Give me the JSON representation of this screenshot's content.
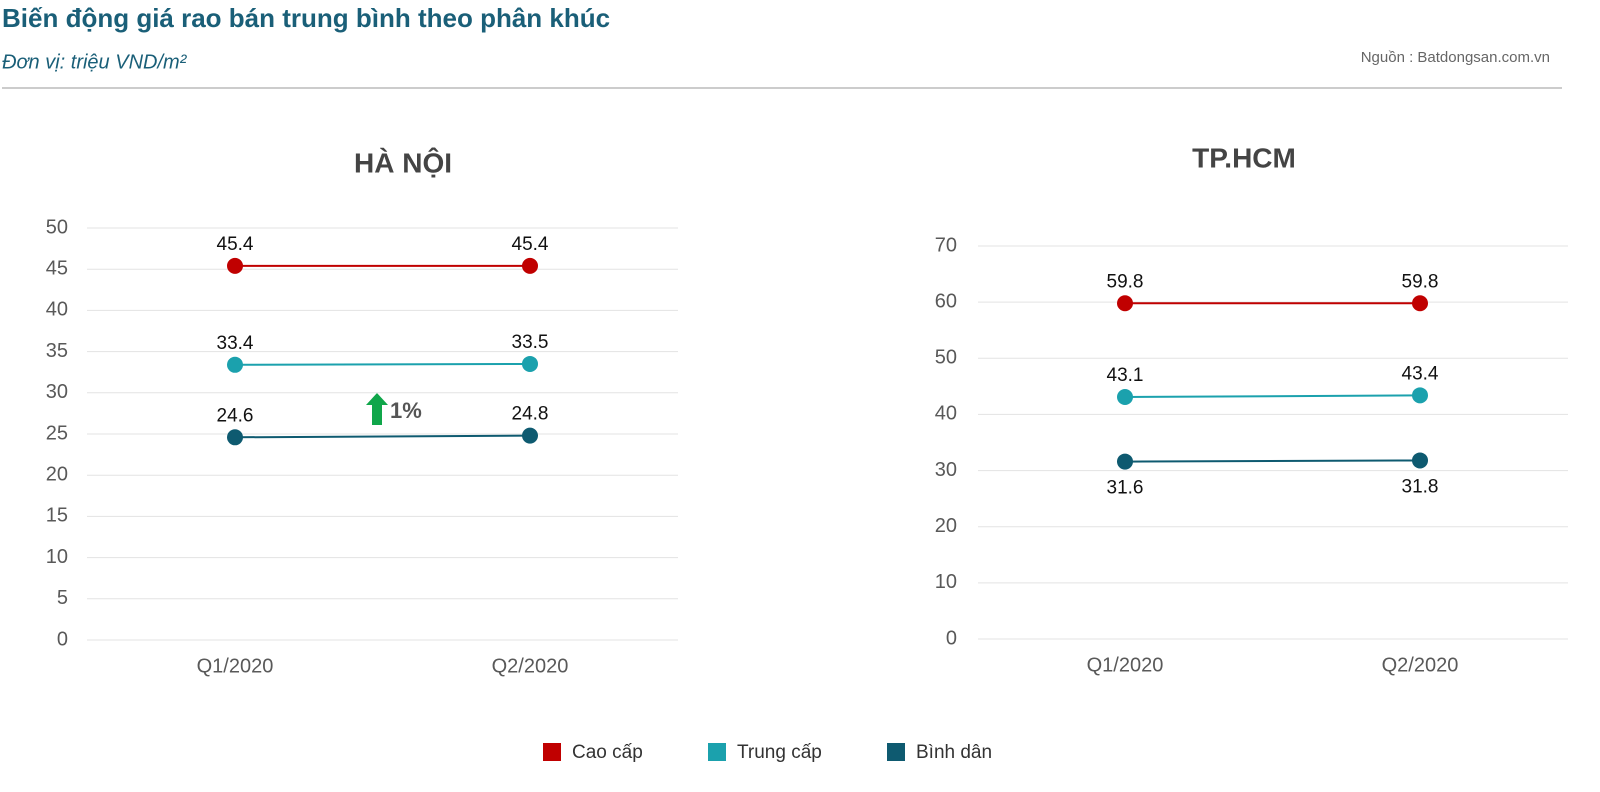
{
  "title": "Biến động giá rao bán trung bình theo phân khúc",
  "subtitle": "Đơn vị: triệu VND/m²",
  "source": "Nguồn : Batdongsan.com.vn",
  "chart_data": [
    {
      "type": "line",
      "title": "HÀ NỘI",
      "categories": [
        "Q1/2020",
        "Q2/2020"
      ],
      "series": [
        {
          "name": "Cao cấp",
          "color": "#c00000",
          "values": [
            45.4,
            45.4
          ]
        },
        {
          "name": "Trung cấp",
          "color": "#1ba1ad",
          "values": [
            33.4,
            33.5
          ]
        },
        {
          "name": "Bình dân",
          "color": "#0e5a70",
          "values": [
            24.6,
            24.8
          ]
        }
      ],
      "ylim": [
        0,
        50
      ],
      "yticks": [
        0,
        5,
        10,
        15,
        20,
        25,
        30,
        35,
        40,
        45,
        50
      ],
      "grid": true,
      "annotation": "1%"
    },
    {
      "type": "line",
      "title": "TP.HCM",
      "categories": [
        "Q1/2020",
        "Q2/2020"
      ],
      "series": [
        {
          "name": "Cao cấp",
          "color": "#c00000",
          "values": [
            59.8,
            59.8
          ]
        },
        {
          "name": "Trung cấp",
          "color": "#1ba1ad",
          "values": [
            43.1,
            43.4
          ]
        },
        {
          "name": "Bình dân",
          "color": "#0e5a70",
          "values": [
            31.6,
            31.8
          ]
        }
      ],
      "ylim": [
        0,
        70
      ],
      "yticks": [
        0,
        10,
        20,
        30,
        40,
        50,
        60,
        70
      ],
      "grid": true
    }
  ]
}
